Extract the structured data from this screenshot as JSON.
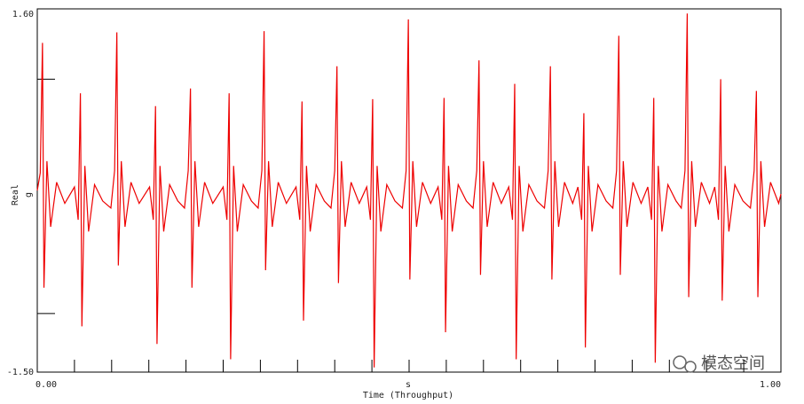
{
  "chart_data": {
    "type": "line",
    "x_label": "Time (Throughput)",
    "x_unit": "s",
    "y_label": "Real",
    "y_unit": "g",
    "watermark": "模态空间",
    "xlim": [
      0,
      1
    ],
    "ylim": [
      -1.5,
      1.6
    ],
    "xticks": [
      {
        "value": 0,
        "label": "0.00"
      },
      {
        "value": 1,
        "label": "1.00"
      }
    ],
    "yticks": [
      {
        "value": 1.6,
        "label": "1.60"
      },
      {
        "value": -1.5,
        "label": "-1.50"
      }
    ],
    "xminor": [
      0.05,
      0.1,
      0.15,
      0.2,
      0.25,
      0.3,
      0.35,
      0.4,
      0.45,
      0.5,
      0.55,
      0.6,
      0.65,
      0.7,
      0.75,
      0.8,
      0.85,
      0.9,
      0.95
    ],
    "yminor": [
      1,
      -1
    ],
    "series": [
      {
        "color": "#ee0000",
        "x": [
          0.0,
          0.004,
          0.007,
          0.009,
          0.013,
          0.018,
          0.026,
          0.037,
          0.05,
          0.055,
          0.058,
          0.06,
          0.064,
          0.069,
          0.077,
          0.088,
          0.099,
          0.104,
          0.107,
          0.109,
          0.113,
          0.118,
          0.126,
          0.137,
          0.151,
          0.156,
          0.159,
          0.161,
          0.165,
          0.17,
          0.178,
          0.189,
          0.198,
          0.203,
          0.206,
          0.208,
          0.212,
          0.217,
          0.225,
          0.236,
          0.25,
          0.255,
          0.258,
          0.26,
          0.264,
          0.269,
          0.277,
          0.288,
          0.297,
          0.302,
          0.305,
          0.307,
          0.311,
          0.316,
          0.324,
          0.335,
          0.348,
          0.353,
          0.356,
          0.358,
          0.362,
          0.367,
          0.375,
          0.386,
          0.395,
          0.4,
          0.403,
          0.405,
          0.409,
          0.414,
          0.422,
          0.433,
          0.443,
          0.448,
          0.451,
          0.453,
          0.457,
          0.462,
          0.47,
          0.481,
          0.491,
          0.496,
          0.499,
          0.501,
          0.505,
          0.51,
          0.518,
          0.529,
          0.539,
          0.544,
          0.547,
          0.549,
          0.553,
          0.558,
          0.566,
          0.577,
          0.586,
          0.591,
          0.594,
          0.596,
          0.6,
          0.605,
          0.613,
          0.624,
          0.634,
          0.639,
          0.642,
          0.644,
          0.648,
          0.653,
          0.661,
          0.672,
          0.682,
          0.687,
          0.69,
          0.692,
          0.696,
          0.701,
          0.709,
          0.72,
          0.727,
          0.732,
          0.735,
          0.737,
          0.741,
          0.746,
          0.754,
          0.765,
          0.774,
          0.779,
          0.782,
          0.784,
          0.788,
          0.793,
          0.801,
          0.812,
          0.821,
          0.826,
          0.829,
          0.831,
          0.835,
          0.84,
          0.848,
          0.859,
          0.866,
          0.871,
          0.874,
          0.876,
          0.88,
          0.885,
          0.893,
          0.904,
          0.911,
          0.916,
          0.919,
          0.921,
          0.925,
          0.93,
          0.938,
          0.949,
          0.959,
          0.964,
          0.967,
          0.969,
          0.973,
          0.978,
          0.986,
          0.997,
          1.0
        ],
        "values": [
          0.05,
          0.2,
          1.31,
          -0.78,
          0.3,
          -0.26,
          0.12,
          -0.06,
          0.08,
          -0.2,
          0.88,
          -1.11,
          0.26,
          -0.3,
          0.1,
          -0.04,
          -0.1,
          0.22,
          1.4,
          -0.59,
          0.3,
          -0.26,
          0.12,
          -0.06,
          0.08,
          -0.2,
          0.77,
          -1.26,
          0.26,
          -0.3,
          0.1,
          -0.04,
          -0.1,
          0.22,
          0.92,
          -0.78,
          0.3,
          -0.26,
          0.12,
          -0.06,
          0.08,
          -0.2,
          0.88,
          -1.39,
          0.26,
          -0.3,
          0.1,
          -0.04,
          -0.1,
          0.22,
          1.41,
          -0.63,
          0.3,
          -0.26,
          0.12,
          -0.06,
          0.08,
          -0.2,
          0.81,
          -1.06,
          0.26,
          -0.3,
          0.1,
          -0.04,
          -0.1,
          0.22,
          1.11,
          -0.74,
          0.3,
          -0.26,
          0.12,
          -0.06,
          0.08,
          -0.2,
          0.83,
          -1.46,
          0.26,
          -0.3,
          0.1,
          -0.04,
          -0.1,
          0.22,
          1.51,
          -0.71,
          0.3,
          -0.26,
          0.12,
          -0.06,
          0.08,
          -0.2,
          0.84,
          -1.16,
          0.26,
          -0.3,
          0.1,
          -0.04,
          -0.1,
          0.22,
          1.16,
          -0.67,
          0.3,
          -0.26,
          0.12,
          -0.06,
          0.08,
          -0.2,
          0.96,
          -1.39,
          0.26,
          -0.3,
          0.1,
          -0.04,
          -0.1,
          0.22,
          1.11,
          -0.71,
          0.3,
          -0.26,
          0.12,
          -0.06,
          0.08,
          -0.2,
          0.71,
          -1.29,
          0.26,
          -0.3,
          0.1,
          -0.04,
          -0.1,
          0.22,
          1.37,
          -0.67,
          0.3,
          -0.26,
          0.12,
          -0.06,
          0.08,
          -0.2,
          0.84,
          -1.42,
          0.26,
          -0.3,
          0.1,
          -0.04,
          -0.1,
          0.22,
          1.56,
          -0.86,
          0.3,
          -0.26,
          0.12,
          -0.06,
          0.08,
          -0.2,
          1.0,
          -0.89,
          0.26,
          -0.3,
          0.1,
          -0.04,
          -0.1,
          0.22,
          0.9,
          -0.86,
          0.3,
          -0.26,
          0.12,
          -0.06,
          0.02
        ]
      }
    ]
  }
}
